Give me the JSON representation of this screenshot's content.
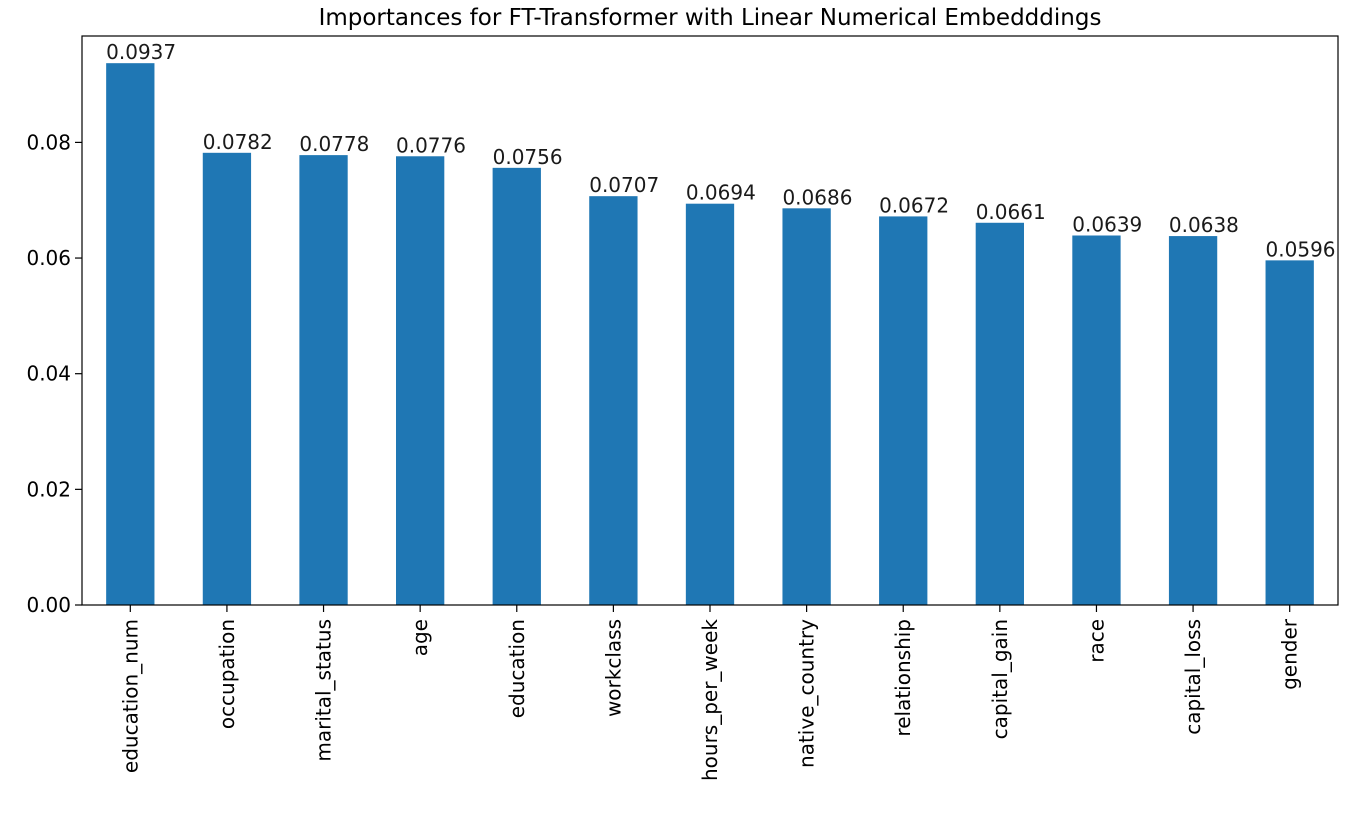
{
  "chart_data": {
    "type": "bar",
    "title": "Importances for FT-Transformer with Linear Numerical Embedddings",
    "xlabel": "",
    "ylabel": "",
    "categories": [
      "education_num",
      "occupation",
      "marital_status",
      "age",
      "education",
      "workclass",
      "hours_per_week",
      "native_country",
      "relationship",
      "capital_gain",
      "race",
      "capital_loss",
      "gender"
    ],
    "values": [
      0.0937,
      0.0782,
      0.0778,
      0.0776,
      0.0756,
      0.0707,
      0.0694,
      0.0686,
      0.0672,
      0.0661,
      0.0639,
      0.0638,
      0.0596
    ],
    "data_labels": [
      "0.0937",
      "0.0782",
      "0.0778",
      "0.0776",
      "0.0756",
      "0.0707",
      "0.0694",
      "0.0686",
      "0.0672",
      "0.0661",
      "0.0639",
      "0.0638",
      "0.0596"
    ],
    "yticks": [
      0.0,
      0.02,
      0.04,
      0.06,
      0.08
    ],
    "ytick_labels": [
      "0.00",
      "0.02",
      "0.04",
      "0.06",
      "0.08"
    ],
    "ylim": [
      0,
      0.0984
    ],
    "grid": false,
    "legend": "none",
    "bar_color": "#1f77b4"
  }
}
